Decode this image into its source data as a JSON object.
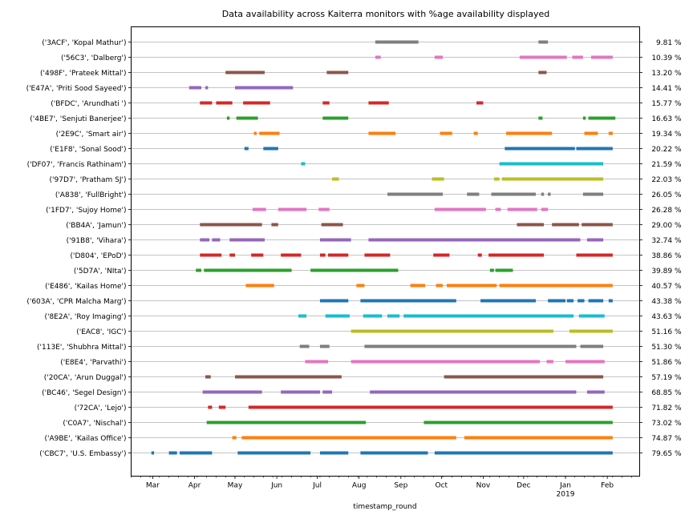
{
  "chart_data": {
    "type": "timeline",
    "title": "Data availability across Kaiterra monitors with %age availability displayed",
    "xlabel": "timestamp_round",
    "x_range": [
      "2018-02-13",
      "2019-02-25"
    ],
    "x_ticks": [
      {
        "date": "2018-03-01",
        "label": "Mar"
      },
      {
        "date": "2018-04-01",
        "label": "Apr"
      },
      {
        "date": "2018-05-01",
        "label": "May"
      },
      {
        "date": "2018-06-01",
        "label": "Jun"
      },
      {
        "date": "2018-07-01",
        "label": "Jul"
      },
      {
        "date": "2018-08-01",
        "label": "Aug"
      },
      {
        "date": "2018-09-01",
        "label": "Sep"
      },
      {
        "date": "2018-10-01",
        "label": "Oct"
      },
      {
        "date": "2018-11-01",
        "label": "Nov"
      },
      {
        "date": "2018-12-01",
        "label": "Dec"
      },
      {
        "date": "2019-01-01",
        "label": "Jan",
        "sublabel": "2019"
      },
      {
        "date": "2019-02-01",
        "label": "Feb"
      }
    ],
    "series": [
      {
        "label": "('3ACF', 'Kopal Mathur')",
        "pct": "9.81 %",
        "color": "#7f7f7f",
        "segments": [
          [
            "2018-08-13",
            "2018-09-14"
          ],
          [
            "2018-12-12",
            "2018-12-19"
          ]
        ]
      },
      {
        "label": "('56C3', 'Dalberg')",
        "pct": "10.39 %",
        "color": "#e377c2",
        "segments": [
          [
            "2018-08-13",
            "2018-08-17"
          ],
          [
            "2018-09-26",
            "2018-10-02"
          ],
          [
            "2018-11-28",
            "2019-01-02"
          ],
          [
            "2019-01-06",
            "2019-01-14"
          ],
          [
            "2019-01-20",
            "2019-02-05"
          ]
        ]
      },
      {
        "label": "('498F', 'Prateek Mittal')",
        "pct": "13.20 %",
        "color": "#8c564b",
        "segments": [
          [
            "2018-04-24",
            "2018-05-23"
          ],
          [
            "2018-07-08",
            "2018-07-24"
          ],
          [
            "2018-12-12",
            "2018-12-18"
          ]
        ]
      },
      {
        "label": "('E47A', 'Priti Sood Sayeed')",
        "pct": "14.41 %",
        "color": "#9467bd",
        "segments": [
          [
            "2018-03-28",
            "2018-04-06"
          ],
          [
            "2018-04-09",
            "2018-04-11"
          ],
          [
            "2018-05-01",
            "2018-06-13"
          ]
        ]
      },
      {
        "label": "('BFDC', 'Arundhati ')",
        "pct": "15.77 %",
        "color": "#d62728",
        "segments": [
          [
            "2018-04-05",
            "2018-04-14"
          ],
          [
            "2018-04-17",
            "2018-04-29"
          ],
          [
            "2018-05-07",
            "2018-05-27"
          ],
          [
            "2018-07-05",
            "2018-07-10"
          ],
          [
            "2018-08-08",
            "2018-08-23"
          ],
          [
            "2018-10-27",
            "2018-11-01"
          ]
        ]
      },
      {
        "label": "('4BE7', 'Senjuti Banerjee')",
        "pct": "16.63 %",
        "color": "#2ca02c",
        "segments": [
          [
            "2018-04-25",
            "2018-04-27"
          ],
          [
            "2018-05-02",
            "2018-05-18"
          ],
          [
            "2018-07-05",
            "2018-07-24"
          ],
          [
            "2018-12-12",
            "2018-12-15"
          ],
          [
            "2019-01-14",
            "2019-01-16"
          ],
          [
            "2019-01-18",
            "2019-02-07"
          ]
        ]
      },
      {
        "label": "('2E9C', 'Smart air')",
        "pct": "19.34 %",
        "color": "#ff7f0e",
        "segments": [
          [
            "2018-05-15",
            "2018-05-17"
          ],
          [
            "2018-05-19",
            "2018-06-03"
          ],
          [
            "2018-08-08",
            "2018-08-28"
          ],
          [
            "2018-09-30",
            "2018-10-09"
          ],
          [
            "2018-10-25",
            "2018-10-28"
          ],
          [
            "2018-11-18",
            "2018-12-22"
          ],
          [
            "2019-01-15",
            "2019-01-25"
          ],
          [
            "2019-02-02",
            "2019-02-05"
          ]
        ]
      },
      {
        "label": "('E1F8', 'Sonal Sood')",
        "pct": "20.22 %",
        "color": "#1f77b4",
        "segments": [
          [
            "2018-05-08",
            "2018-05-11"
          ],
          [
            "2018-05-22",
            "2018-06-02"
          ],
          [
            "2018-11-17",
            "2019-01-08"
          ],
          [
            "2019-01-09",
            "2019-02-05"
          ]
        ]
      },
      {
        "label": "('DF07', 'Francis Rathinam')",
        "pct": "21.59 %",
        "color": "#17becf",
        "segments": [
          [
            "2018-06-19",
            "2018-06-22"
          ],
          [
            "2018-11-13",
            "2019-01-29"
          ]
        ]
      },
      {
        "label": "('97D7', 'Pratham SJ')",
        "pct": "22.03 %",
        "color": "#bcbd22",
        "segments": [
          [
            "2018-07-12",
            "2018-07-17"
          ],
          [
            "2018-09-24",
            "2018-10-03"
          ],
          [
            "2018-11-09",
            "2018-11-13"
          ],
          [
            "2018-11-15",
            "2019-01-29"
          ]
        ]
      },
      {
        "label": "('A838', 'FullBright')",
        "pct": "26.05 %",
        "color": "#7f7f7f",
        "segments": [
          [
            "2018-08-22",
            "2018-10-02"
          ],
          [
            "2018-10-20",
            "2018-10-29"
          ],
          [
            "2018-11-07",
            "2018-12-10"
          ],
          [
            "2018-12-14",
            "2018-12-16"
          ],
          [
            "2018-12-19",
            "2018-12-21"
          ],
          [
            "2019-01-14",
            "2019-01-29"
          ]
        ]
      },
      {
        "label": "('1FD7', 'Sujoy Home')",
        "pct": "26.28 %",
        "color": "#e377c2",
        "segments": [
          [
            "2018-05-14",
            "2018-05-24"
          ],
          [
            "2018-06-02",
            "2018-06-23"
          ],
          [
            "2018-07-02",
            "2018-07-10"
          ],
          [
            "2018-09-26",
            "2018-11-03"
          ],
          [
            "2018-11-10",
            "2018-11-14"
          ],
          [
            "2018-11-19",
            "2018-12-11"
          ],
          [
            "2018-12-14",
            "2018-12-19"
          ]
        ]
      },
      {
        "label": "('BB4A', 'Jamun')",
        "pct": "29.00 %",
        "color": "#8c564b",
        "segments": [
          [
            "2018-04-05",
            "2018-05-21"
          ],
          [
            "2018-05-28",
            "2018-06-02"
          ],
          [
            "2018-07-04",
            "2018-07-20"
          ],
          [
            "2018-11-26",
            "2018-12-16"
          ],
          [
            "2018-12-22",
            "2019-01-11"
          ],
          [
            "2019-01-13",
            "2019-02-05"
          ]
        ]
      },
      {
        "label": "('91B8', 'Vihara')",
        "pct": "32.74 %",
        "color": "#9467bd",
        "segments": [
          [
            "2018-04-05",
            "2018-04-12"
          ],
          [
            "2018-04-14",
            "2018-04-20"
          ],
          [
            "2018-04-27",
            "2018-05-23"
          ],
          [
            "2018-07-03",
            "2018-07-26"
          ],
          [
            "2018-08-08",
            "2019-01-12"
          ],
          [
            "2019-01-17",
            "2019-01-29"
          ]
        ]
      },
      {
        "label": "('D804', 'EPoD')",
        "pct": "38.86 %",
        "color": "#d62728",
        "segments": [
          [
            "2018-04-05",
            "2018-04-21"
          ],
          [
            "2018-04-27",
            "2018-05-01"
          ],
          [
            "2018-05-13",
            "2018-05-22"
          ],
          [
            "2018-06-04",
            "2018-06-19"
          ],
          [
            "2018-07-03",
            "2018-07-07"
          ],
          [
            "2018-07-09",
            "2018-07-24"
          ],
          [
            "2018-08-05",
            "2018-08-24"
          ],
          [
            "2018-09-25",
            "2018-10-07"
          ],
          [
            "2018-10-28",
            "2018-10-31"
          ],
          [
            "2018-11-05",
            "2018-12-16"
          ],
          [
            "2019-01-09",
            "2019-02-05"
          ]
        ]
      },
      {
        "label": "('5D7A', 'NIta')",
        "pct": "39.89 %",
        "color": "#2ca02c",
        "segments": [
          [
            "2018-04-02",
            "2018-04-06"
          ],
          [
            "2018-04-08",
            "2018-06-12"
          ],
          [
            "2018-06-26",
            "2018-08-30"
          ],
          [
            "2018-11-06",
            "2018-11-09"
          ],
          [
            "2018-11-10",
            "2018-11-23"
          ]
        ]
      },
      {
        "label": "('E486', 'Kailas Home')",
        "pct": "40.57 %",
        "color": "#ff7f0e",
        "segments": [
          [
            "2018-05-09",
            "2018-05-30"
          ],
          [
            "2018-07-30",
            "2018-08-05"
          ],
          [
            "2018-09-08",
            "2018-09-19"
          ],
          [
            "2018-09-27",
            "2018-10-02"
          ],
          [
            "2018-10-05",
            "2018-11-11"
          ],
          [
            "2018-11-13",
            "2019-02-05"
          ]
        ]
      },
      {
        "label": "('603A', 'CPR Malcha Marg')",
        "pct": "43.38 %",
        "color": "#1f77b4",
        "segments": [
          [
            "2018-07-03",
            "2018-07-24"
          ],
          [
            "2018-08-02",
            "2018-10-12"
          ],
          [
            "2018-10-30",
            "2018-12-10"
          ],
          [
            "2018-12-19",
            "2019-01-01"
          ],
          [
            "2019-01-02",
            "2019-01-07"
          ],
          [
            "2019-01-10",
            "2019-01-15"
          ],
          [
            "2019-01-18",
            "2019-01-29"
          ],
          [
            "2019-02-02",
            "2019-02-05"
          ]
        ]
      },
      {
        "label": "('8E2A', 'Roy Imaging')",
        "pct": "43.63 %",
        "color": "#17becf",
        "segments": [
          [
            "2018-06-17",
            "2018-06-23"
          ],
          [
            "2018-07-07",
            "2018-07-25"
          ],
          [
            "2018-08-04",
            "2018-08-18"
          ],
          [
            "2018-08-22",
            "2018-08-31"
          ],
          [
            "2018-09-03",
            "2019-01-07"
          ],
          [
            "2019-01-11",
            "2019-01-30"
          ]
        ]
      },
      {
        "label": "('EAC8', 'IGC')",
        "pct": "51.16 %",
        "color": "#bcbd22",
        "segments": [
          [
            "2018-07-26",
            "2018-12-23"
          ],
          [
            "2019-01-04",
            "2019-02-05"
          ]
        ]
      },
      {
        "label": "('113E', 'Shubhra Mittal')",
        "pct": "51.30 %",
        "color": "#7f7f7f",
        "segments": [
          [
            "2018-06-18",
            "2018-06-25"
          ],
          [
            "2018-07-03",
            "2018-07-10"
          ],
          [
            "2018-08-05",
            "2019-01-09"
          ],
          [
            "2019-01-12",
            "2019-01-29"
          ]
        ]
      },
      {
        "label": "('E8E4', 'Parvathi')",
        "pct": "51.86 %",
        "color": "#e377c2",
        "segments": [
          [
            "2018-06-22",
            "2018-07-09"
          ],
          [
            "2018-07-26",
            "2018-12-13"
          ],
          [
            "2018-12-18",
            "2018-12-23"
          ],
          [
            "2019-01-01",
            "2019-01-30"
          ]
        ]
      },
      {
        "label": "('20CA', 'Arun Duggal')",
        "pct": "57.19 %",
        "color": "#8c564b",
        "segments": [
          [
            "2018-04-09",
            "2018-04-13"
          ],
          [
            "2018-05-01",
            "2018-07-19"
          ],
          [
            "2018-10-03",
            "2019-01-29"
          ]
        ]
      },
      {
        "label": "('BC46', 'Segel Design')",
        "pct": "68.85 %",
        "color": "#9467bd",
        "segments": [
          [
            "2018-04-07",
            "2018-05-21"
          ],
          [
            "2018-06-04",
            "2018-07-03"
          ],
          [
            "2018-07-05",
            "2018-07-12"
          ],
          [
            "2018-08-09",
            "2019-01-09"
          ],
          [
            "2019-01-17",
            "2019-01-30"
          ]
        ]
      },
      {
        "label": "('72CA', 'Lejo')",
        "pct": "71.82 %",
        "color": "#d62728",
        "segments": [
          [
            "2018-04-11",
            "2018-04-14"
          ],
          [
            "2018-04-19",
            "2018-04-24"
          ],
          [
            "2018-05-11",
            "2019-02-05"
          ]
        ]
      },
      {
        "label": "('C0A7', 'Nischal')",
        "pct": "73.02 %",
        "color": "#2ca02c",
        "segments": [
          [
            "2018-04-10",
            "2018-08-06"
          ],
          [
            "2018-09-18",
            "2019-02-05"
          ]
        ]
      },
      {
        "label": "('A9BE', 'Kailas Office')",
        "pct": "74.87 %",
        "color": "#ff7f0e",
        "segments": [
          [
            "2018-04-29",
            "2018-05-02"
          ],
          [
            "2018-05-06",
            "2018-10-12"
          ],
          [
            "2018-10-18",
            "2019-02-05"
          ]
        ]
      },
      {
        "label": "('CBC7', 'U.S. Embassy')",
        "pct": "79.65 %",
        "color": "#1f77b4",
        "segments": [
          [
            "2018-02-28",
            "2018-03-02"
          ],
          [
            "2018-03-13",
            "2018-03-19"
          ],
          [
            "2018-03-21",
            "2018-04-14"
          ],
          [
            "2018-05-03",
            "2018-06-26"
          ],
          [
            "2018-07-03",
            "2018-07-24"
          ],
          [
            "2018-08-02",
            "2018-09-21"
          ],
          [
            "2018-09-26",
            "2019-02-05"
          ]
        ]
      }
    ]
  }
}
